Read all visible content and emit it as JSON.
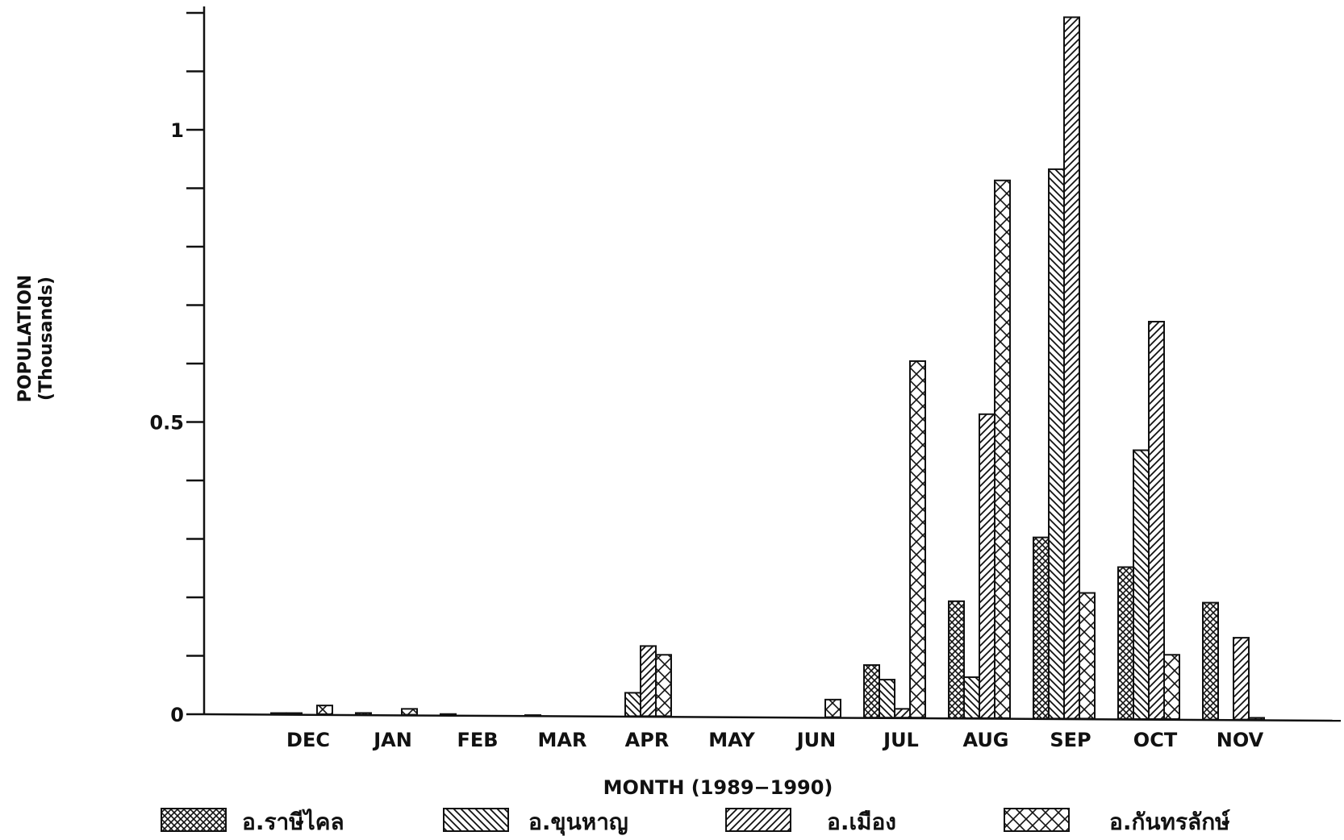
{
  "chart_data": {
    "type": "bar",
    "title": "",
    "xlabel": "MONTH (1989−1990)",
    "ylabel_line1": "POPULATION",
    "ylabel_line2": "(Thousands)",
    "ylim": [
      0,
      1.2
    ],
    "yticks": [
      0,
      0.1,
      0.2,
      0.3,
      0.4,
      0.5,
      0.6,
      0.7,
      0.8,
      0.9,
      1.0,
      1.1,
      1.2
    ],
    "ytick_labels": [
      {
        "value": 0,
        "label": "0"
      },
      {
        "value": 0.5,
        "label": "0.5"
      },
      {
        "value": 1,
        "label": "1"
      }
    ],
    "categories": [
      "DEC",
      "JAN",
      "FEB",
      "MAR",
      "APR",
      "MAY",
      "JUN",
      "JUL",
      "AUG",
      "SEP",
      "OCT",
      "NOV"
    ],
    "legend_position": "bottom",
    "grid": false,
    "series": [
      {
        "name": "อ.ราษีไคล",
        "pattern": "crosshatch",
        "values": [
          0.002,
          0.003,
          0.002,
          0.001,
          0.0,
          0.0,
          0.0,
          0.09,
          0.2,
          0.31,
          0.26,
          0.2
        ]
      },
      {
        "name": "อ.ขุนหาญ",
        "pattern": "backslash",
        "values": [
          0.002,
          0.0,
          0.0,
          0.0,
          0.04,
          0.0,
          0.0,
          0.065,
          0.07,
          0.94,
          0.46,
          0.0
        ]
      },
      {
        "name": "อ.เมือง",
        "pattern": "slash",
        "values": [
          0.0,
          0.0,
          0.0,
          0.0,
          0.12,
          0.0,
          0.0,
          0.015,
          0.52,
          1.2,
          0.68,
          0.14
        ]
      },
      {
        "name": "อ.กันทรลักษ์",
        "pattern": "diamond",
        "values": [
          0.015,
          0.01,
          0.0,
          0.0,
          0.105,
          0.0,
          0.03,
          0.61,
          0.92,
          0.215,
          0.11,
          0.003
        ]
      }
    ]
  }
}
